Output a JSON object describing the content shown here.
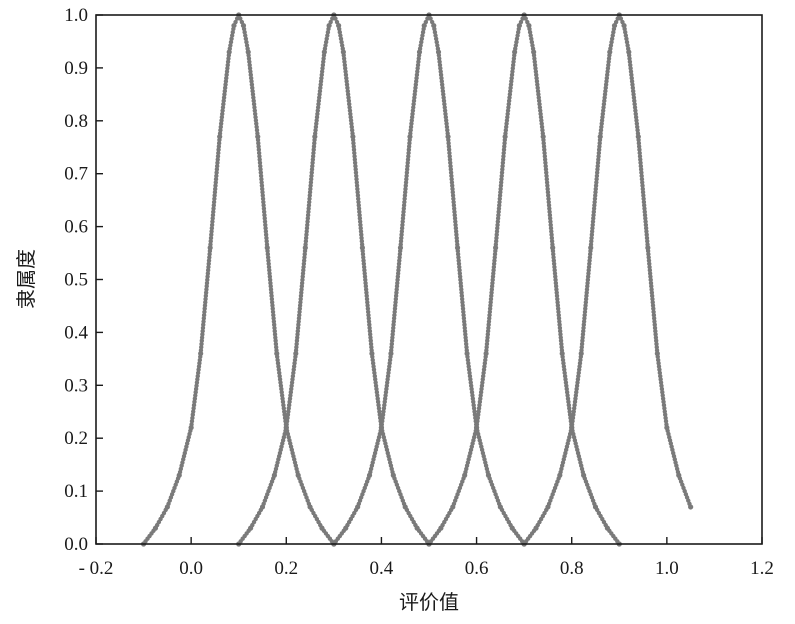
{
  "chart_data": {
    "type": "scatter",
    "title": "",
    "xlabel": "评价值",
    "ylabel": "隶属度",
    "xlim": [
      -0.2,
      1.2
    ],
    "ylim": [
      0.0,
      1.0
    ],
    "xticks": [
      -0.2,
      0.0,
      0.2,
      0.4,
      0.6,
      0.8,
      1.0,
      1.2
    ],
    "xtick_labels": [
      "- 0.2",
      "0.0",
      "0.2",
      "0.4",
      "0.6",
      "0.8",
      "1.0",
      "1.2"
    ],
    "yticks": [
      0.0,
      0.1,
      0.2,
      0.3,
      0.4,
      0.5,
      0.6,
      0.7,
      0.8,
      0.9,
      1.0
    ],
    "ytick_labels": [
      "0.0",
      "0.1",
      "0.2",
      "0.3",
      "0.4",
      "0.5",
      "0.6",
      "0.7",
      "0.8",
      "0.9",
      "1.0"
    ],
    "grid": false,
    "legend": "none",
    "marker_color": "#7a7a7a",
    "series": [
      {
        "x": [
          -0.1,
          -0.075,
          -0.05,
          -0.025,
          0.0,
          0.02,
          0.04,
          0.06,
          0.08,
          0.09,
          0.1,
          0.11,
          0.12,
          0.14,
          0.16,
          0.18,
          0.2,
          0.225,
          0.25,
          0.275,
          0.3
        ],
        "y": [
          0.0,
          0.03,
          0.07,
          0.13,
          0.22,
          0.36,
          0.56,
          0.77,
          0.93,
          0.98,
          1.0,
          0.98,
          0.93,
          0.77,
          0.56,
          0.36,
          0.22,
          0.13,
          0.07,
          0.03,
          0.0
        ]
      },
      {
        "x": [
          0.1,
          0.125,
          0.15,
          0.175,
          0.2,
          0.22,
          0.24,
          0.26,
          0.28,
          0.29,
          0.3,
          0.31,
          0.32,
          0.34,
          0.36,
          0.38,
          0.4,
          0.425,
          0.45,
          0.475,
          0.5
        ],
        "y": [
          0.0,
          0.03,
          0.07,
          0.13,
          0.22,
          0.36,
          0.56,
          0.77,
          0.93,
          0.98,
          1.0,
          0.98,
          0.93,
          0.77,
          0.56,
          0.36,
          0.22,
          0.13,
          0.07,
          0.03,
          0.0
        ]
      },
      {
        "x": [
          0.3,
          0.325,
          0.35,
          0.375,
          0.4,
          0.42,
          0.44,
          0.46,
          0.48,
          0.49,
          0.5,
          0.51,
          0.52,
          0.54,
          0.56,
          0.58,
          0.6,
          0.625,
          0.65,
          0.675,
          0.7
        ],
        "y": [
          0.0,
          0.03,
          0.07,
          0.13,
          0.22,
          0.36,
          0.56,
          0.77,
          0.93,
          0.98,
          1.0,
          0.98,
          0.93,
          0.77,
          0.56,
          0.36,
          0.22,
          0.13,
          0.07,
          0.03,
          0.0
        ]
      },
      {
        "x": [
          0.5,
          0.525,
          0.55,
          0.575,
          0.6,
          0.62,
          0.64,
          0.66,
          0.68,
          0.69,
          0.7,
          0.71,
          0.72,
          0.74,
          0.76,
          0.78,
          0.8,
          0.825,
          0.85,
          0.875,
          0.9
        ],
        "y": [
          0.0,
          0.03,
          0.07,
          0.13,
          0.22,
          0.36,
          0.56,
          0.77,
          0.93,
          0.98,
          1.0,
          0.98,
          0.93,
          0.77,
          0.56,
          0.36,
          0.22,
          0.13,
          0.07,
          0.03,
          0.0
        ]
      },
      {
        "x": [
          0.7,
          0.725,
          0.75,
          0.775,
          0.8,
          0.82,
          0.84,
          0.86,
          0.88,
          0.89,
          0.9,
          0.91,
          0.92,
          0.94,
          0.96,
          0.98,
          1.0,
          1.025,
          1.05
        ],
        "y": [
          0.0,
          0.03,
          0.07,
          0.13,
          0.22,
          0.36,
          0.56,
          0.77,
          0.93,
          0.98,
          1.0,
          0.98,
          0.93,
          0.77,
          0.56,
          0.36,
          0.22,
          0.13,
          0.07
        ]
      }
    ]
  }
}
